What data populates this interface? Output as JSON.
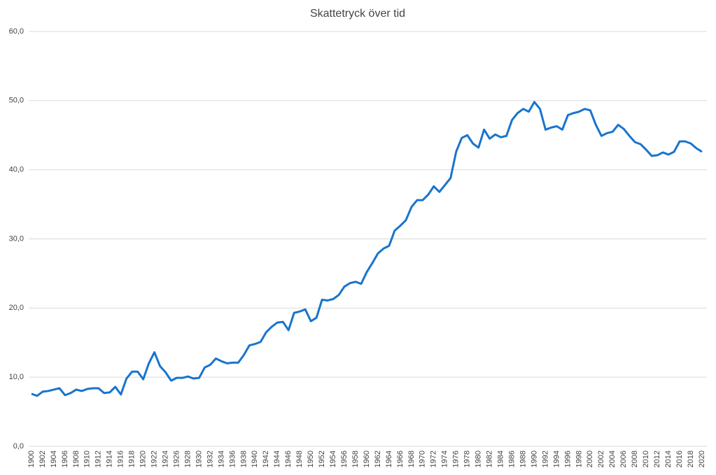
{
  "chart_data": {
    "type": "line",
    "title": "Skattetryck över tid",
    "categories": [
      "1900",
      null,
      "1902",
      null,
      "1904",
      null,
      "1906",
      null,
      "1908",
      null,
      "1910",
      null,
      "1912",
      null,
      "1914",
      null,
      "1916",
      null,
      "1918",
      null,
      "1920",
      null,
      "1922",
      null,
      "1924",
      null,
      "1926",
      null,
      "1928",
      null,
      "1930",
      null,
      "1932",
      null,
      "1934",
      null,
      "1936",
      null,
      "1938",
      null,
      "1940",
      null,
      "1942",
      null,
      "1944",
      null,
      "1946",
      null,
      "1948",
      null,
      "1950",
      null,
      "1952",
      null,
      "1954",
      null,
      "1956",
      null,
      "1958",
      null,
      "1960",
      null,
      "1962",
      null,
      "1964",
      null,
      "1966",
      null,
      "1968",
      null,
      "1970",
      null,
      "1972",
      null,
      "1974",
      null,
      "1976",
      null,
      "1978",
      null,
      "1980",
      null,
      "1982",
      null,
      "1984",
      null,
      "1986",
      null,
      "1988",
      null,
      "1990",
      null,
      "1992",
      null,
      "1994",
      null,
      "1996",
      null,
      "1998",
      null,
      "2000",
      null,
      "2002",
      null,
      "2004",
      null,
      "2006",
      null,
      "2008",
      null,
      "2010",
      null,
      "2012",
      null,
      "2014",
      null,
      "2016",
      null,
      "2018",
      null,
      "2020"
    ],
    "values": [
      7.6,
      7.3,
      7.9,
      8.0,
      8.2,
      8.4,
      7.4,
      7.7,
      8.2,
      8.0,
      8.3,
      8.4,
      8.4,
      7.7,
      7.8,
      8.6,
      7.5,
      9.8,
      10.8,
      10.8,
      9.7,
      12.0,
      13.6,
      11.6,
      10.7,
      9.5,
      9.9,
      9.9,
      10.1,
      9.8,
      9.9,
      11.4,
      11.8,
      12.7,
      12.3,
      12.0,
      12.1,
      12.1,
      13.2,
      14.6,
      14.8,
      15.1,
      16.5,
      17.3,
      17.9,
      18.0,
      16.8,
      19.3,
      19.5,
      19.8,
      18.1,
      18.6,
      21.2,
      21.1,
      21.3,
      21.9,
      23.1,
      23.6,
      23.8,
      23.5,
      25.2,
      26.5,
      27.9,
      28.6,
      29.0,
      31.2,
      31.9,
      32.7,
      34.6,
      35.6,
      35.6,
      36.4,
      37.6,
      36.8,
      37.8,
      38.8,
      42.6,
      44.6,
      45.0,
      43.8,
      43.2,
      45.8,
      44.5,
      45.1,
      44.7,
      44.9,
      47.2,
      48.2,
      48.8,
      48.4,
      49.8,
      48.8,
      45.8,
      46.1,
      46.3,
      45.8,
      47.9,
      48.2,
      48.4,
      48.8,
      48.6,
      46.5,
      44.9,
      45.3,
      45.5,
      46.5,
      45.9,
      44.9,
      44.0,
      43.7,
      42.9,
      42.0,
      42.1,
      42.5,
      42.2,
      42.6,
      44.1,
      44.1,
      43.8,
      43.1,
      42.6
    ],
    "color": "#1874cd",
    "ylim": [
      0,
      60
    ],
    "yticks": [
      {
        "value": 0,
        "label": "0,0"
      },
      {
        "value": 10,
        "label": "10,0"
      },
      {
        "value": 20,
        "label": "20,0"
      },
      {
        "value": 30,
        "label": "30,0"
      },
      {
        "value": 40,
        "label": "40,0"
      },
      {
        "value": 50,
        "label": "50,0"
      },
      {
        "value": 60,
        "label": "60,0"
      }
    ],
    "grid": true
  }
}
